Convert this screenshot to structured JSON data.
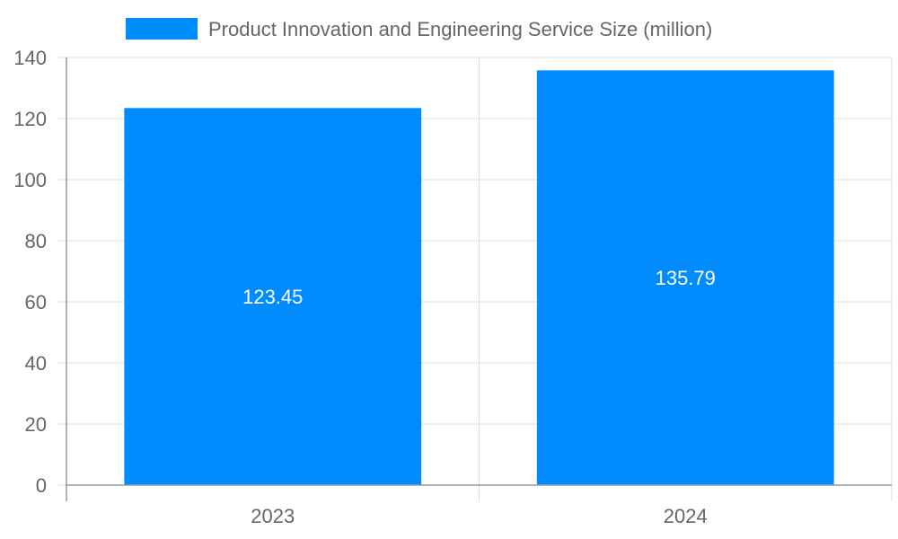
{
  "chart_data": {
    "type": "bar",
    "title": "",
    "xlabel": "",
    "ylabel": "",
    "categories": [
      "2023",
      "2024"
    ],
    "series": [
      {
        "name": "Product Innovation and Engineering Service Size (million)",
        "values": [
          123.45,
          135.79
        ],
        "color": "#008cff"
      }
    ],
    "data_labels": [
      "123.45",
      "135.79"
    ],
    "ylim": [
      0,
      140
    ],
    "yticks": [
      "0",
      "20",
      "40",
      "60",
      "80",
      "100",
      "120",
      "140"
    ],
    "grid": true,
    "legend_position": "top"
  }
}
